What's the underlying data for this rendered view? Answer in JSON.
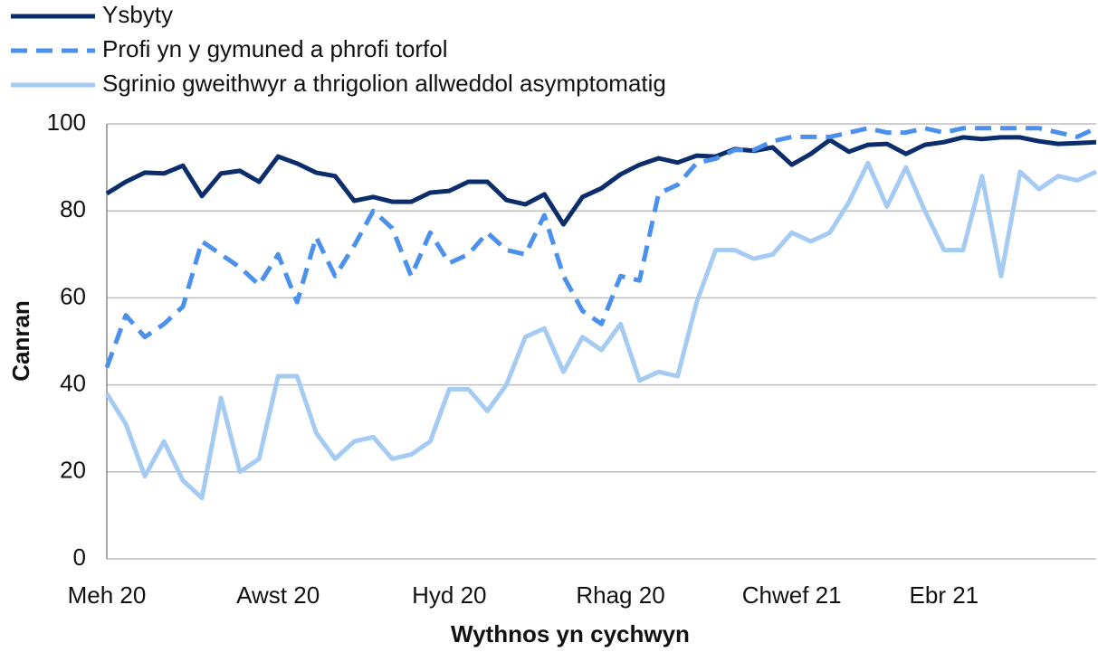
{
  "chart_data": {
    "type": "line",
    "x_label": "Wythnos yn cychwyn",
    "y_label": "Canran",
    "categories": [
      "Meh 20",
      null,
      null,
      null,
      null,
      null,
      null,
      null,
      null,
      "Awst 20",
      null,
      null,
      null,
      null,
      null,
      null,
      null,
      null,
      "Hyd 20",
      null,
      null,
      null,
      null,
      null,
      null,
      null,
      null,
      "Rhag 20",
      null,
      null,
      null,
      null,
      null,
      null,
      null,
      null,
      "Chwef 21",
      null,
      null,
      null,
      null,
      null,
      null,
      null,
      "Ebr 21",
      null,
      null,
      null,
      null,
      null,
      null,
      null,
      null
    ],
    "series": [
      {
        "name": "Ysbyty",
        "color": "#0b2d6b",
        "dash": false,
        "values": [
          84,
          86.7,
          88.8,
          88.6,
          90.4,
          83.4,
          88.6,
          89.2,
          86.7,
          92.5,
          90.9,
          88.8,
          88,
          82.3,
          83.2,
          82.1,
          82.1,
          84.2,
          84.6,
          86.7,
          86.7,
          82.5,
          81.5,
          83.8,
          76.9,
          83.2,
          85.2,
          88.4,
          90.6,
          92.1,
          91.1,
          92.7,
          92.5,
          94.2,
          93.8,
          94.6,
          90.6,
          93.1,
          96.3,
          93.6,
          95.2,
          95.4,
          93.1,
          95.2,
          95.8,
          96.9,
          96.5,
          96.9,
          96.9,
          96,
          95.4,
          95.6,
          95.8
        ]
      },
      {
        "name": "Profi yn y gymuned a phrofi torfol",
        "color": "#4a90ec",
        "dash": true,
        "values": [
          44,
          56,
          51,
          54,
          58,
          73,
          70,
          67,
          63,
          70,
          59,
          74,
          65,
          72,
          80,
          76,
          65,
          75,
          68,
          70,
          75,
          71,
          70,
          79,
          65,
          57,
          54,
          65,
          64,
          84,
          86,
          91,
          92,
          94,
          94,
          96,
          97,
          97,
          97,
          98,
          99,
          98,
          98,
          99,
          98,
          99,
          99,
          99,
          99,
          99,
          98,
          97,
          99
        ]
      },
      {
        "name": "Sgrinio gweithwyr a thrigolion allweddol asymptomatig",
        "color": "#a6cbf3",
        "dash": false,
        "values": [
          38,
          31,
          19,
          27,
          18,
          14,
          37,
          20,
          23,
          42,
          42,
          29,
          23,
          27,
          28,
          23,
          24,
          27,
          39,
          39,
          34,
          40,
          51,
          53,
          43,
          51,
          48,
          54,
          41,
          43,
          42,
          59,
          71,
          71,
          69,
          70,
          75,
          73,
          75,
          82,
          91,
          81,
          90,
          80,
          71,
          71,
          88,
          65,
          89,
          85,
          88,
          87,
          89
        ]
      }
    ],
    "ylim": [
      0,
      100
    ],
    "yticks": [
      0,
      20,
      40,
      60,
      80,
      100
    ],
    "grid": true,
    "legend": "top-left"
  }
}
